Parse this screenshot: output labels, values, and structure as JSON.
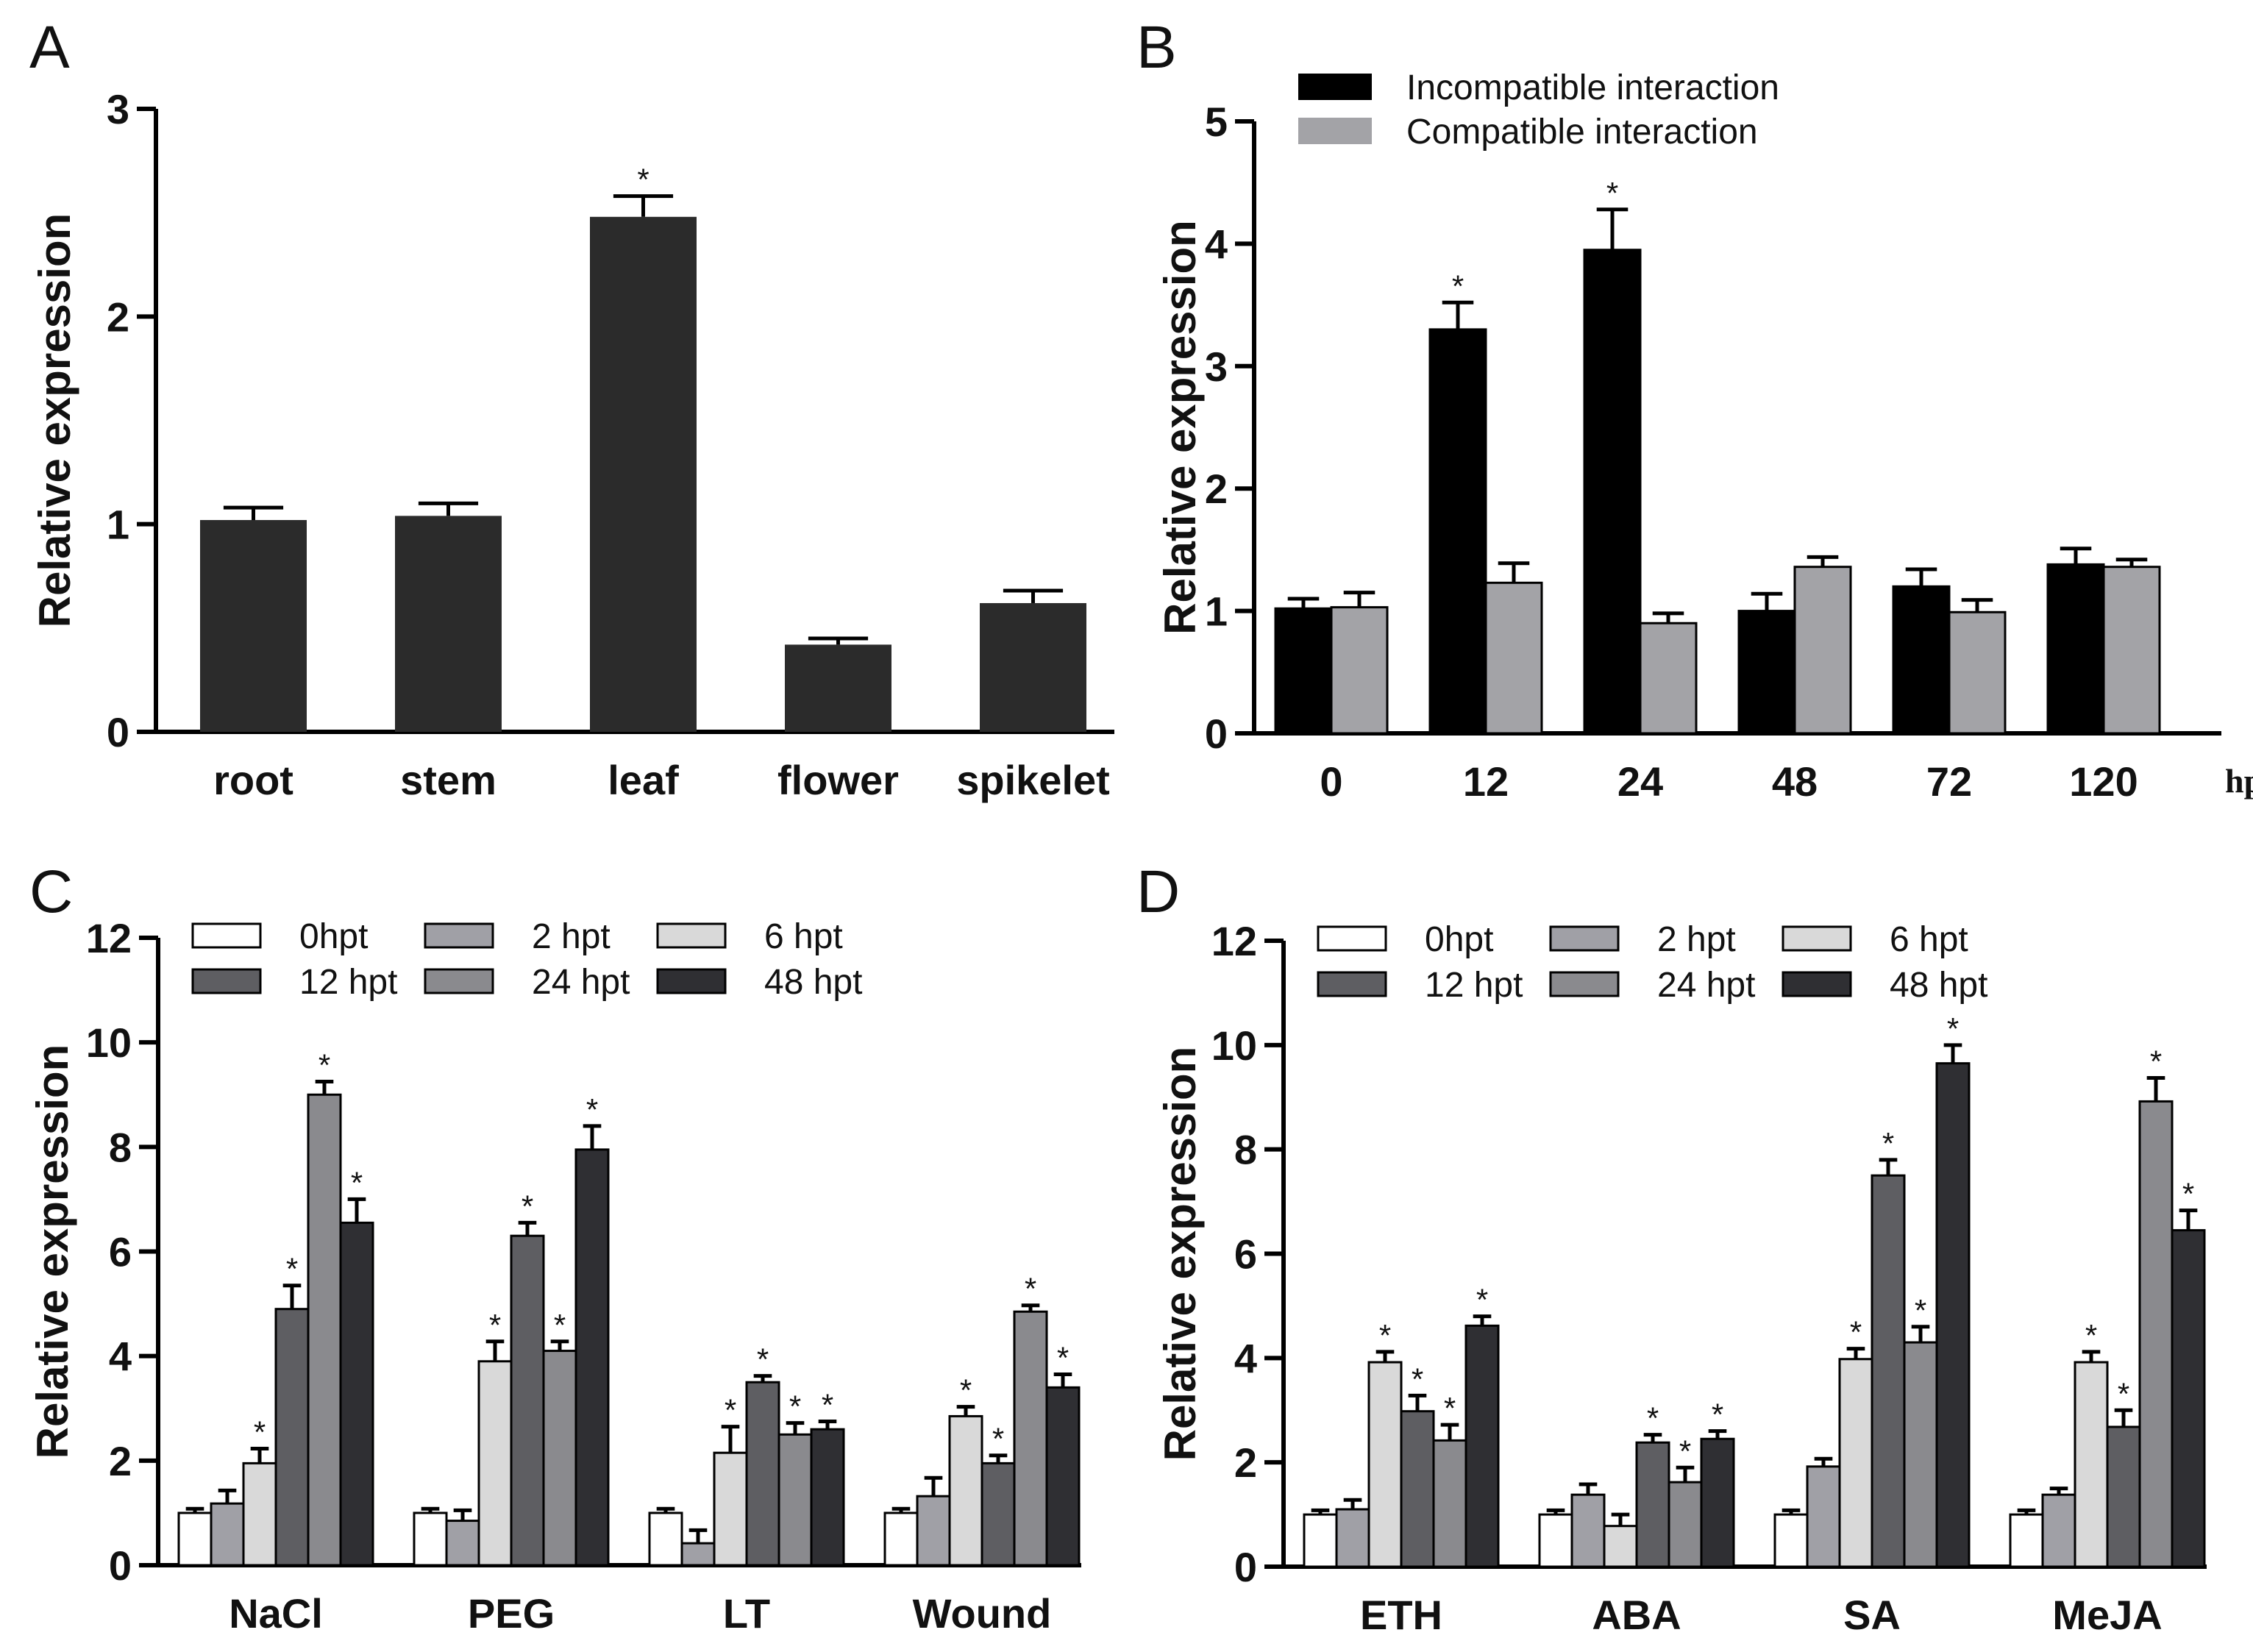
{
  "panels": [
    "A",
    "B",
    "C",
    "D"
  ],
  "chart_data": [
    {
      "panel": "A",
      "type": "bar",
      "ylabel": "Relative expression",
      "ylim": [
        0,
        3
      ],
      "yticks": [
        "0",
        "1",
        "2",
        "3"
      ],
      "categories": [
        "root",
        "stem",
        "leaf",
        "flower",
        "spikelet"
      ],
      "series": [
        {
          "name": "",
          "color": "#2b2b2b",
          "values": [
            1.02,
            1.04,
            2.48,
            0.42,
            0.62
          ],
          "errors": [
            0.06,
            0.06,
            0.1,
            0.03,
            0.06
          ],
          "sig": [
            "",
            "",
            "*",
            "",
            ""
          ]
        }
      ]
    },
    {
      "panel": "B",
      "type": "bar",
      "ylabel": "Relative expression",
      "xunit": "hpi",
      "ylim": [
        0,
        5
      ],
      "yticks": [
        "0",
        "1",
        "2",
        "3",
        "4",
        "5"
      ],
      "categories": [
        "0",
        "12",
        "24",
        "48",
        "72",
        "120"
      ],
      "series": [
        {
          "name": "Incompatible interaction",
          "color": "#000000",
          "values": [
            1.02,
            3.3,
            3.95,
            1.0,
            1.2,
            1.38
          ],
          "errors": [
            0.08,
            0.22,
            0.33,
            0.14,
            0.14,
            0.13
          ],
          "sig": [
            "",
            "*",
            "*",
            "",
            "",
            ""
          ]
        },
        {
          "name": "Compatible interaction",
          "color": "#a3a3a7",
          "values": [
            1.03,
            1.23,
            0.9,
            1.36,
            0.99,
            1.36
          ],
          "errors": [
            0.12,
            0.16,
            0.08,
            0.08,
            0.1,
            0.06
          ],
          "sig": [
            "",
            "",
            "",
            "",
            "",
            ""
          ]
        }
      ]
    },
    {
      "panel": "C",
      "type": "bar",
      "ylabel": "Relative expression",
      "ylim": [
        0,
        12
      ],
      "yticks": [
        "0",
        "2",
        "4",
        "6",
        "8",
        "10",
        "12"
      ],
      "categories": [
        "NaCl",
        "PEG",
        "LT",
        "Wound"
      ],
      "series": [
        {
          "name": "0hpt",
          "color": "#ffffff",
          "values": [
            1.0,
            1.0,
            1.0,
            1.0
          ],
          "errors": [
            0.08,
            0.08,
            0.08,
            0.08
          ],
          "sig": [
            "",
            "",
            "",
            ""
          ]
        },
        {
          "name": "2 hpt",
          "color": "#a0a0a6",
          "values": [
            1.18,
            0.85,
            0.42,
            1.32
          ],
          "errors": [
            0.25,
            0.2,
            0.25,
            0.35
          ],
          "sig": [
            "",
            "",
            "",
            ""
          ]
        },
        {
          "name": "6 hpt",
          "color": "#d9d9d9",
          "values": [
            1.95,
            3.9,
            2.15,
            2.85
          ],
          "errors": [
            0.28,
            0.38,
            0.5,
            0.18
          ],
          "sig": [
            "*",
            "*",
            "*",
            "*"
          ]
        },
        {
          "name": "12 hpt",
          "color": "#5e5e62",
          "values": [
            4.9,
            6.3,
            3.5,
            1.95
          ],
          "errors": [
            0.45,
            0.25,
            0.12,
            0.15
          ],
          "sig": [
            "*",
            "*",
            "*",
            "*"
          ]
        },
        {
          "name": "24 hpt",
          "color": "#8a8a8e",
          "values": [
            9.0,
            4.1,
            2.5,
            4.85
          ],
          "errors": [
            0.25,
            0.18,
            0.22,
            0.12
          ],
          "sig": [
            "*",
            "*",
            "*",
            "*"
          ]
        },
        {
          "name": "48 hpt",
          "color": "#2f2f33",
          "values": [
            6.55,
            7.95,
            2.6,
            3.4
          ],
          "errors": [
            0.45,
            0.45,
            0.15,
            0.25
          ],
          "sig": [
            "*",
            "*",
            "*",
            "*"
          ]
        }
      ]
    },
    {
      "panel": "D",
      "type": "bar",
      "ylabel": "Relative expression",
      "ylim": [
        0,
        12
      ],
      "yticks": [
        "0",
        "2",
        "4",
        "6",
        "8",
        "10",
        "12"
      ],
      "categories": [
        "ETH",
        "ABA",
        "SA",
        "MeJA"
      ],
      "series": [
        {
          "name": "0hpt",
          "color": "#ffffff",
          "values": [
            1.0,
            1.0,
            1.0,
            1.0
          ],
          "errors": [
            0.08,
            0.08,
            0.08,
            0.08
          ],
          "sig": [
            "",
            "",
            "",
            ""
          ]
        },
        {
          "name": "2 hpt",
          "color": "#a0a0a6",
          "values": [
            1.1,
            1.38,
            1.92,
            1.38
          ],
          "errors": [
            0.18,
            0.2,
            0.15,
            0.12
          ],
          "sig": [
            "",
            "",
            "",
            ""
          ]
        },
        {
          "name": "6 hpt",
          "color": "#d9d9d9",
          "values": [
            3.92,
            0.78,
            3.98,
            3.92
          ],
          "errors": [
            0.2,
            0.22,
            0.2,
            0.2
          ],
          "sig": [
            "*",
            "",
            "*",
            "*"
          ]
        },
        {
          "name": "12 hpt",
          "color": "#5e5e62",
          "values": [
            2.98,
            2.38,
            7.5,
            2.68
          ],
          "errors": [
            0.3,
            0.15,
            0.3,
            0.32
          ],
          "sig": [
            "*",
            "*",
            "*",
            "*"
          ]
        },
        {
          "name": "24 hpt",
          "color": "#8a8a8e",
          "values": [
            2.42,
            1.62,
            4.3,
            8.92
          ],
          "errors": [
            0.3,
            0.28,
            0.3,
            0.45
          ],
          "sig": [
            "*",
            "*",
            "*",
            "*"
          ]
        },
        {
          "name": "48 hpt",
          "color": "#2f2f33",
          "values": [
            4.62,
            2.45,
            9.65,
            6.45
          ],
          "errors": [
            0.18,
            0.15,
            0.35,
            0.38
          ],
          "sig": [
            "*",
            "*",
            "*",
            "*"
          ]
        }
      ]
    }
  ]
}
